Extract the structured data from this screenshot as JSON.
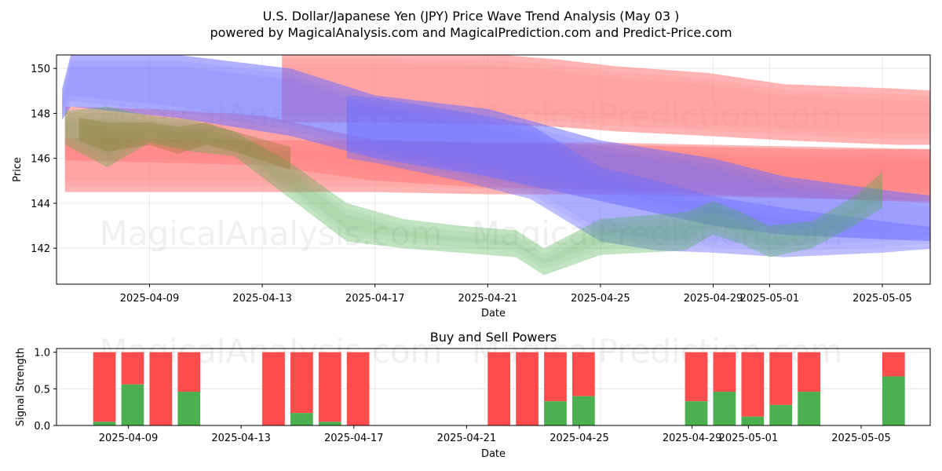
{
  "title": "U.S. Dollar/Japanese Yen (JPY) Price Wave Trend Analysis (May 03 )",
  "subtitle": "powered by MagicalAnalysis.com and MagicalPrediction.com and Predict-Price.com",
  "watermarks": [
    "MagicalAnalysis.com",
    "MagicalPrediction.com"
  ],
  "colors": {
    "up": "#4caf50",
    "down": "#ff4c4c",
    "blue": "#6f6fff",
    "red": "#ff8080",
    "green": "#4caf50"
  },
  "chart_data": [
    {
      "type": "area",
      "ylabel": "Price",
      "xlabel": "Date",
      "ylim": [
        140.4,
        150.6
      ],
      "xlim_days": [
        -3.3,
        27.7
      ],
      "x_ticks": [
        {
          "day": 0,
          "label": "2025-04-09"
        },
        {
          "day": 4,
          "label": "2025-04-13"
        },
        {
          "day": 8,
          "label": "2025-04-17"
        },
        {
          "day": 12,
          "label": "2025-04-21"
        },
        {
          "day": 16,
          "label": "2025-04-25"
        },
        {
          "day": 20,
          "label": "2025-04-29"
        },
        {
          "day": 22,
          "label": "2025-05-01"
        },
        {
          "day": 26,
          "label": "2025-05-05"
        }
      ],
      "y_ticks": [
        142,
        144,
        146,
        148,
        150
      ],
      "bands": [
        {
          "name": "red-upper",
          "color": "#ff8080",
          "opacity": 0.6,
          "x": [
            4.7,
            8.5,
            12.5,
            14.5,
            16.5,
            19.8,
            22.5,
            26.5,
            28.0
          ],
          "top": [
            150.7,
            150.7,
            150.6,
            150.4,
            150.1,
            149.8,
            149.3,
            149.1,
            149.0
          ],
          "bottom": [
            147.6,
            147.6,
            147.5,
            147.4,
            147.2,
            147.0,
            146.8,
            146.6,
            146.6
          ]
        },
        {
          "name": "red-lower",
          "color": "#ff8080",
          "opacity": 0.6,
          "x": [
            -3.0,
            0,
            4.0,
            8.0,
            12.0,
            16.0,
            20.0,
            24.0,
            28.0
          ],
          "top": [
            148.3,
            148.2,
            147.9,
            146.8,
            146.7,
            146.6,
            146.5,
            146.4,
            146.4
          ],
          "bottom": [
            144.5,
            144.5,
            144.5,
            144.5,
            144.4,
            144.4,
            144.3,
            144.2,
            144.1
          ]
        },
        {
          "name": "red-flat",
          "color": "#ff8080",
          "opacity": 0.6,
          "x": [
            -3.0,
            4.0,
            8.0,
            12.0,
            16.0,
            20.0,
            24.0,
            28.0
          ],
          "top": [
            146.9,
            146.8,
            146.8,
            146.7,
            146.7,
            146.6,
            146.5,
            146.4
          ],
          "bottom": [
            145.9,
            145.7,
            145.0,
            144.7,
            144.6,
            144.4,
            144.2,
            144.0
          ]
        },
        {
          "name": "blue-upper",
          "color": "#6f6fff",
          "opacity": 0.55,
          "x": [
            -3.1,
            -2.8,
            1.0,
            5.0,
            8.0,
            12.0,
            16.0,
            20.0,
            22.5,
            26.0,
            28.0
          ],
          "top": [
            149.1,
            150.6,
            150.6,
            150.0,
            148.8,
            148.2,
            146.8,
            146.0,
            145.2,
            144.6,
            144.3
          ],
          "bottom": [
            147.7,
            148.3,
            147.8,
            147.0,
            146.0,
            145.2,
            144.1,
            143.0,
            142.6,
            142.4,
            142.3
          ]
        },
        {
          "name": "blue-lower",
          "color": "#6f6fff",
          "opacity": 0.45,
          "x": [
            7.0,
            8.0,
            11.0,
            13.5,
            16.0,
            18.0,
            20.0,
            22.5,
            26.0,
            28.0
          ],
          "top": [
            148.8,
            148.7,
            148.1,
            147.5,
            145.6,
            145.0,
            144.3,
            143.8,
            143.2,
            142.9
          ],
          "bottom": [
            146.0,
            145.8,
            145.0,
            144.2,
            142.3,
            141.9,
            141.8,
            141.6,
            141.8,
            142.0
          ]
        },
        {
          "name": "green-wave",
          "color": "#4caf50",
          "opacity": 0.35,
          "x": [
            -3.0,
            -1.5,
            0,
            1.5,
            3.0,
            5.0,
            7.0,
            9.0,
            11.0,
            13.0,
            14.0,
            16.0,
            19.0,
            20.0,
            21.0,
            22.0,
            23.5,
            25.0,
            26.0
          ],
          "top": [
            148.1,
            148.3,
            147.9,
            147.7,
            147.2,
            145.8,
            144.0,
            143.3,
            143.0,
            142.8,
            142.0,
            143.3,
            143.6,
            144.1,
            143.6,
            143.0,
            143.2,
            144.3,
            145.4
          ],
          "bottom": [
            146.6,
            145.6,
            146.7,
            146.3,
            146.1,
            144.2,
            142.3,
            142.0,
            141.8,
            141.6,
            140.8,
            141.7,
            141.9,
            142.6,
            142.2,
            141.6,
            142.0,
            143.0,
            143.8
          ]
        },
        {
          "name": "olive-core",
          "color": "#8a7a30",
          "opacity": 0.35,
          "x": [
            -2.5,
            -1.5,
            0,
            1.0,
            2.0,
            3.0,
            5.0
          ],
          "top": [
            147.8,
            147.6,
            147.6,
            147.4,
            147.6,
            147.2,
            146.5
          ],
          "bottom": [
            146.8,
            146.3,
            146.6,
            146.2,
            146.6,
            146.3,
            145.5
          ]
        }
      ]
    },
    {
      "type": "bar",
      "title": "Buy and Sell Powers",
      "ylabel": "Signal Strength",
      "xlabel": "Date",
      "ylim": [
        0,
        1.05
      ],
      "y_ticks": [
        0.0,
        0.5,
        1.0
      ],
      "y_tick_labels": [
        "0.0",
        "0.5",
        "1.0"
      ],
      "series": [
        {
          "name": "buy",
          "color": "#4caf50"
        },
        {
          "name": "sell",
          "color": "#ff4c4c"
        }
      ],
      "bars": [
        {
          "day": -1.6,
          "buy": 0.05
        },
        {
          "day": -0.6,
          "buy": 0.56
        },
        {
          "day": 0.4,
          "buy": 0.0
        },
        {
          "day": 1.4,
          "buy": 0.46
        },
        {
          "day": 4.4,
          "buy": 0.0
        },
        {
          "day": 5.4,
          "buy": 0.17
        },
        {
          "day": 6.4,
          "buy": 0.05
        },
        {
          "day": 7.4,
          "buy": 0.0
        },
        {
          "day": 12.4,
          "buy": 0.0
        },
        {
          "day": 13.4,
          "buy": 0.0
        },
        {
          "day": 14.4,
          "buy": 0.33
        },
        {
          "day": 15.4,
          "buy": 0.4
        },
        {
          "day": 19.4,
          "buy": 0.33
        },
        {
          "day": 20.4,
          "buy": 0.46
        },
        {
          "day": 21.4,
          "buy": 0.12
        },
        {
          "day": 22.4,
          "buy": 0.28
        },
        {
          "day": 23.4,
          "buy": 0.46
        },
        {
          "day": 26.4,
          "buy": 0.67
        }
      ]
    }
  ]
}
